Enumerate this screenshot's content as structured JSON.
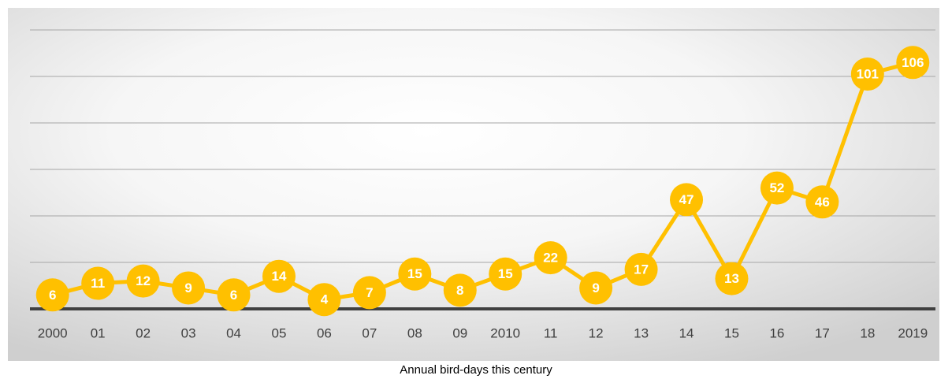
{
  "chart_data": {
    "type": "line",
    "title": "Annual bird-days this century",
    "categories": [
      "2000",
      "01",
      "02",
      "03",
      "04",
      "05",
      "06",
      "07",
      "08",
      "09",
      "2010",
      "11",
      "12",
      "13",
      "14",
      "15",
      "16",
      "17",
      "18",
      "2019"
    ],
    "series": [
      {
        "name": "Annual bird-days",
        "color": "#FFC000",
        "values": [
          6,
          11,
          12,
          9,
          6,
          14,
          4,
          7,
          15,
          8,
          15,
          22,
          9,
          17,
          47,
          13,
          52,
          46,
          101,
          106
        ]
      }
    ],
    "ylim": [
      0,
      120
    ],
    "yticks": [
      0,
      20,
      40,
      60,
      80,
      100,
      120
    ],
    "grid": true
  }
}
